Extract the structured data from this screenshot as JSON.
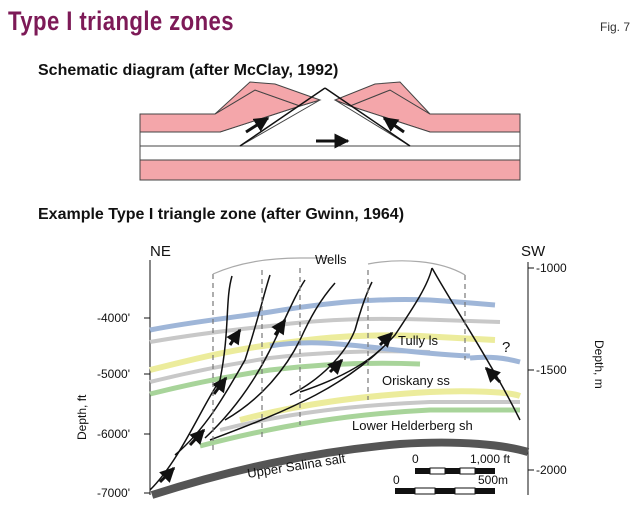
{
  "header": {
    "title": "Type I triangle zones",
    "fig_label": "Fig. 7"
  },
  "schematic": {
    "title": "Schematic diagram (after McClay, 1992)"
  },
  "example": {
    "title": "Example Type I triangle zone (after Gwinn, 1964)",
    "direction_left": "NE",
    "direction_right": "SW",
    "wells_label": "Wells",
    "unit_labels": {
      "tully": "Tully ls",
      "oriskany": "Oriskany ss",
      "helderberg": "Lower Helderberg sh",
      "salina": "Upper Salina salt"
    },
    "question_mark": "?",
    "depth_ft": {
      "axis_label": "Depth, ft",
      "ticks": [
        "-4000'",
        "-5000'",
        "-6000'",
        "-7000'"
      ]
    },
    "depth_m": {
      "axis_label": "Depth, m",
      "ticks": [
        "-1000",
        "-1500",
        "-2000"
      ]
    },
    "scale_ft": {
      "start": "0",
      "end": "1,000 ft"
    },
    "scale_m": {
      "start": "0",
      "end": "500m"
    }
  },
  "colors": {
    "title": "#7d1a57",
    "pink_layer": "#f4a6aa",
    "blue_layer": "#9fb6d8",
    "yellow_layer": "#ecec9c",
    "green_layer": "#a8d49a",
    "grey_layer": "#c8c8c8",
    "salt": "#555555"
  }
}
